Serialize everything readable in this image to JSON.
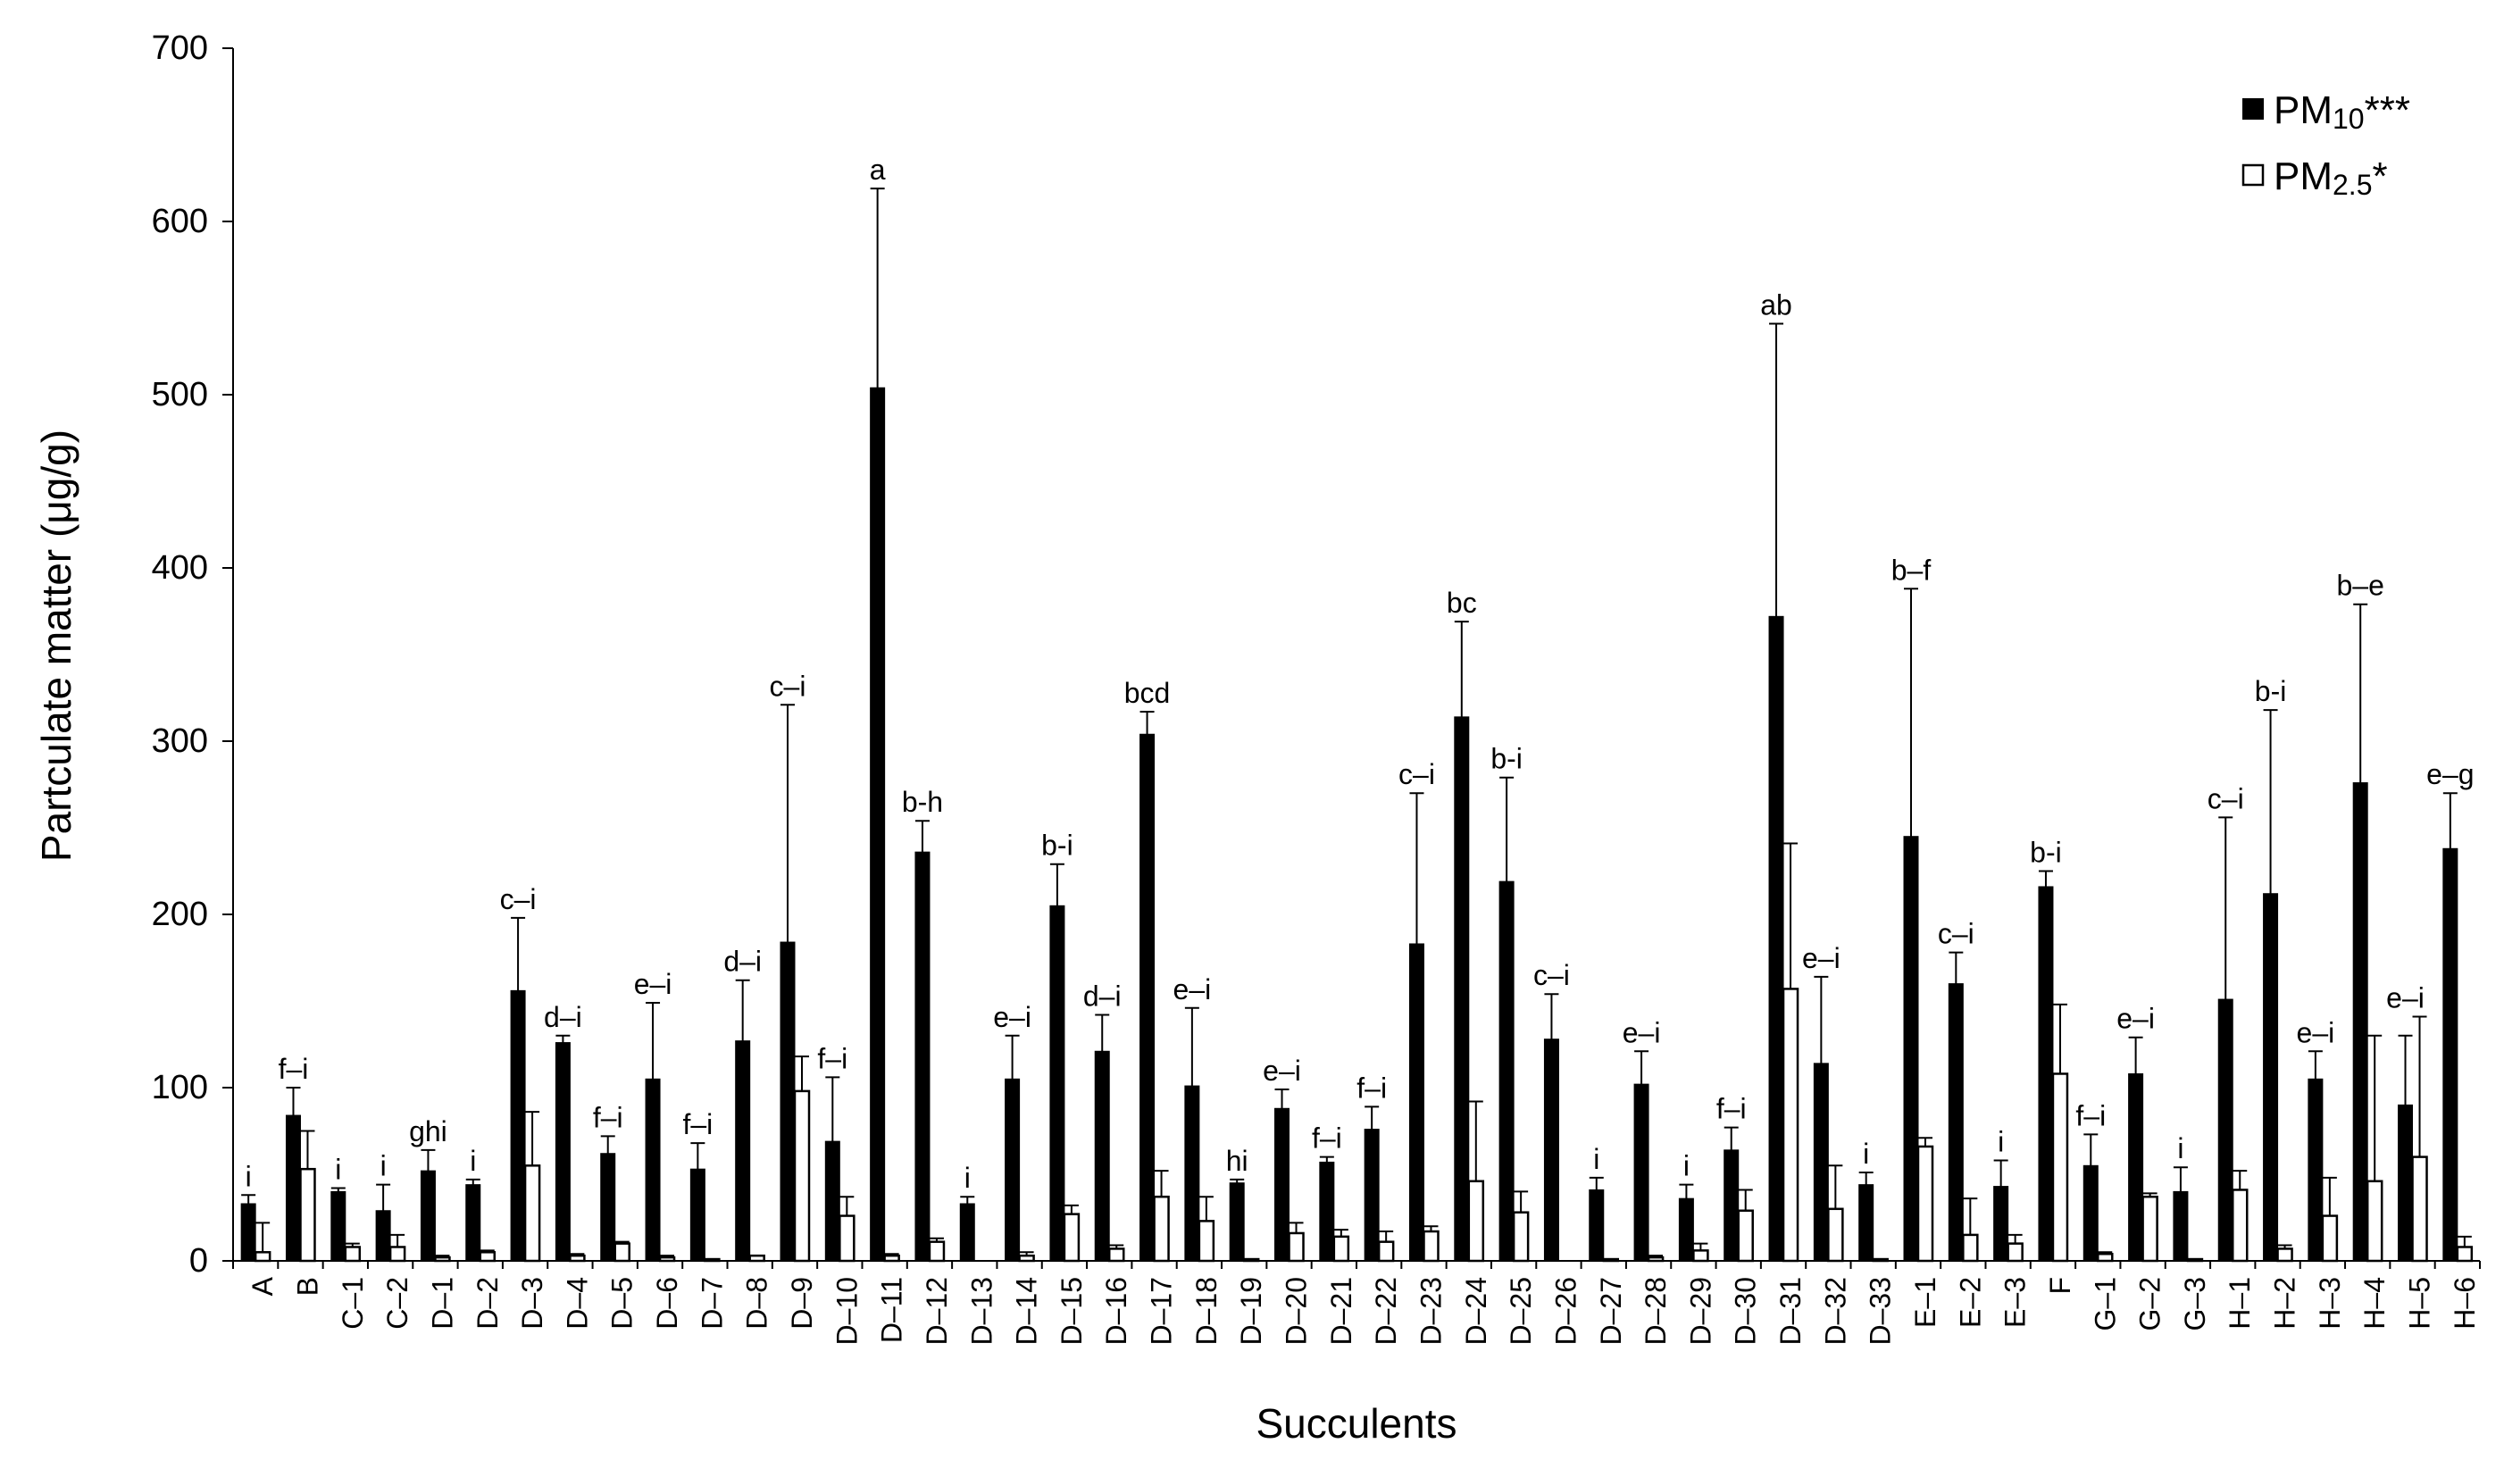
{
  "chart_data": {
    "type": "bar",
    "title": "",
    "xlabel": "Succulents",
    "ylabel": "Partculate matter (μg/g)",
    "ylim": [
      0,
      700
    ],
    "yticks": [
      0,
      100,
      200,
      300,
      400,
      500,
      600,
      700
    ],
    "grid": false,
    "legend_position": "top-right",
    "categories": [
      "A",
      "B",
      "C–1",
      "C–2",
      "D–1",
      "D–2",
      "D–3",
      "D–4",
      "D–5",
      "D–6",
      "D–7",
      "D–8",
      "D–9",
      "D–10",
      "D–11",
      "D–12",
      "D–13",
      "D–14",
      "D–15",
      "D–16",
      "D–17",
      "D–18",
      "D–19",
      "D–20",
      "D–21",
      "D–22",
      "D–23",
      "D–24",
      "D–25",
      "D–26",
      "D–27",
      "D–28",
      "D–29",
      "D–30",
      "D–31",
      "D–32",
      "D–33",
      "E–1",
      "E–2",
      "E–3",
      "F",
      "G–1",
      "G–2",
      "G–3",
      "H–1",
      "H–2",
      "H–3",
      "H–4",
      "H–5",
      "H–6"
    ],
    "series": [
      {
        "name_main": "PM",
        "name_sub": "10",
        "name_suffix": "***",
        "fill": "#000000",
        "values": [
          33,
          84,
          40,
          29,
          52,
          44,
          156,
          126,
          62,
          105,
          53,
          127,
          184,
          69,
          504,
          236,
          33,
          105,
          205,
          121,
          304,
          101,
          45,
          88,
          57,
          76,
          183,
          314,
          219,
          128,
          41,
          102,
          36,
          64,
          372,
          114,
          44,
          245,
          160,
          43,
          216,
          55,
          108,
          40,
          151,
          212,
          105,
          276,
          90,
          238
        ],
        "errors": [
          5,
          16,
          2,
          15,
          12,
          3,
          42,
          4,
          10,
          44,
          15,
          35,
          137,
          37,
          115,
          18,
          4,
          25,
          24,
          21,
          13,
          45,
          2,
          11,
          3,
          13,
          87,
          55,
          60,
          26,
          7,
          19,
          8,
          13,
          169,
          50,
          7,
          143,
          18,
          15,
          9,
          18,
          21,
          14,
          105,
          106,
          16,
          103,
          40,
          32
        ]
      },
      {
        "name_main": "PM",
        "name_sub": "2.5",
        "name_suffix": "*",
        "fill": "#ffffff",
        "values": [
          5,
          53,
          8,
          8,
          2,
          5,
          55,
          3,
          10,
          2,
          1,
          3,
          98,
          26,
          3,
          11,
          0,
          3,
          27,
          7,
          37,
          23,
          1,
          16,
          14,
          11,
          17,
          46,
          28,
          0,
          1,
          2,
          6,
          29,
          157,
          30,
          1,
          66,
          15,
          10,
          108,
          4,
          37,
          1,
          41,
          7,
          26,
          46,
          60,
          8
        ],
        "errors": [
          17,
          22,
          2,
          7,
          1,
          1,
          31,
          1,
          1,
          1,
          0,
          0,
          20,
          11,
          1,
          2,
          0,
          2,
          5,
          2,
          15,
          14,
          0,
          6,
          4,
          6,
          3,
          46,
          12,
          0,
          0,
          1,
          4,
          12,
          84,
          25,
          0,
          5,
          21,
          5,
          40,
          1,
          2,
          0,
          11,
          2,
          22,
          84,
          81,
          6
        ]
      }
    ],
    "significance_labels": [
      "i",
      "f–i",
      "i",
      "i",
      "ghi",
      "i",
      "c–i",
      "d–i",
      "f–i",
      "e–i",
      "f–i",
      "d–i",
      "c–i",
      "f–i",
      "a",
      "b-h",
      "i",
      "e–i",
      "b-i",
      "d–i",
      "bcd",
      "e–i",
      "hi",
      "e–i",
      "f–i",
      "f–i",
      "c–i",
      "bc",
      "b-i",
      "c–i",
      "i",
      "e–i",
      "i",
      "f–i",
      "ab",
      "e–i",
      "i",
      "b–f",
      "c–i",
      "i",
      "b-i",
      "f–i",
      "e–i",
      "i",
      "c–i",
      "b-i",
      "e–i",
      "b–e",
      "e–i",
      "e–g"
    ]
  }
}
